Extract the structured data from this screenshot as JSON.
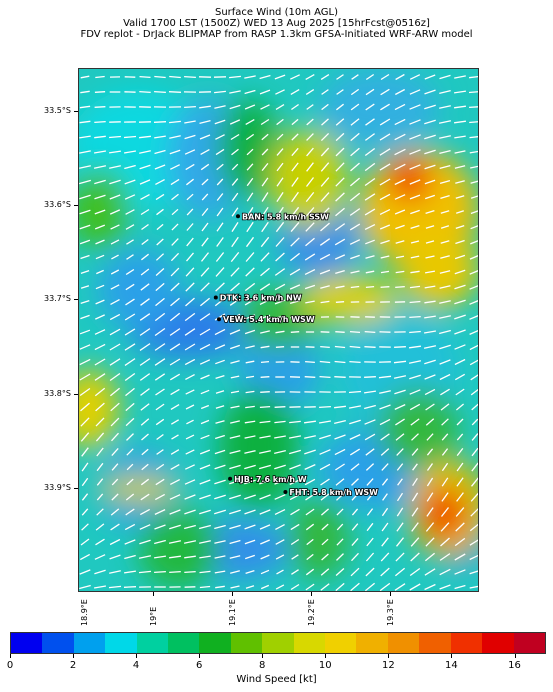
{
  "titles": {
    "line1": "Surface Wind (10m AGL)",
    "line2": "Valid 1700 LST (1500Z) WED 13 Aug 2025 [15hrFcst@0516z]",
    "line3": "FDV replot - DrJack BLIPMAP from RASP 1.3km GFSA-Initiated WRF-ARW model"
  },
  "map": {
    "lon_range": [
      18.905,
      19.412
    ],
    "lat_range": [
      -34.01,
      -33.455
    ],
    "lat_ticks": [
      {
        "value": -33.5,
        "label": "33.5°S"
      },
      {
        "value": -33.6,
        "label": "33.6°S"
      },
      {
        "value": -33.7,
        "label": "33.7°S"
      },
      {
        "value": -33.8,
        "label": "33.8°S"
      },
      {
        "value": -33.9,
        "label": "33.9°S"
      }
    ],
    "lon_ticks": [
      {
        "value": 18.9,
        "label": "18.9°E"
      },
      {
        "value": 19.0,
        "label": "19°E"
      },
      {
        "value": 19.1,
        "label": "19.1°E"
      },
      {
        "value": 19.2,
        "label": "19.2°E"
      },
      {
        "value": 19.3,
        "label": "19.3°E"
      }
    ],
    "sites": [
      {
        "id": "BAN",
        "label": "BAN: 5.8 km/h SSW",
        "lon": 19.106,
        "lat": -33.611
      },
      {
        "id": "DTK",
        "label": "DTK: 3.6 km/h NW",
        "lon": 19.078,
        "lat": -33.697
      },
      {
        "id": "VEW",
        "label": "VEW: 5.4 km/h WSW",
        "lon": 19.082,
        "lat": -33.72
      },
      {
        "id": "HJB",
        "label": "HJB: 7.6 km/h W",
        "lon": 19.096,
        "lat": -33.889
      },
      {
        "id": "FHT",
        "label": "FHT: 5.8 km/h WSW",
        "lon": 19.166,
        "lat": -33.903
      }
    ]
  },
  "colorbar": {
    "label": "Wind Speed [kt]",
    "min": 0,
    "max": 17,
    "colors": [
      "#0000f0",
      "#0050ee",
      "#00a0ee",
      "#00d8e8",
      "#00d0a0",
      "#00c060",
      "#10b020",
      "#60c000",
      "#a0d000",
      "#d8d800",
      "#f0d000",
      "#f0b000",
      "#f09000",
      "#f06000",
      "#f03000",
      "#e00000",
      "#c00020"
    ],
    "ticks": [
      {
        "value": 0,
        "label": "0"
      },
      {
        "value": 2,
        "label": "2"
      },
      {
        "value": 4,
        "label": "4"
      },
      {
        "value": 6,
        "label": "6"
      },
      {
        "value": 8,
        "label": "8"
      },
      {
        "value": 10,
        "label": "10"
      },
      {
        "value": 12,
        "label": "12"
      },
      {
        "value": 14,
        "label": "14"
      },
      {
        "value": 16,
        "label": "16"
      }
    ]
  }
}
